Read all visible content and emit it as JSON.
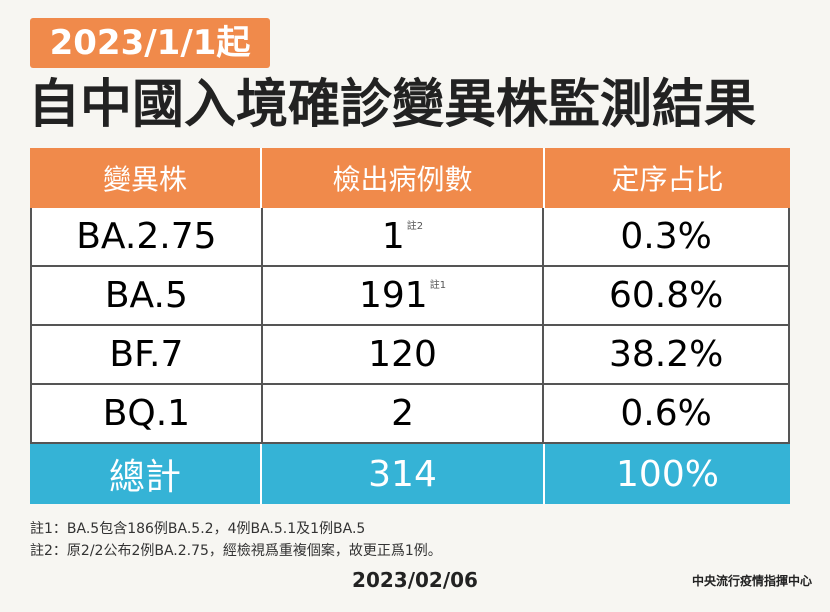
{
  "header": {
    "badge": "2023/1/1起",
    "title": "自中國入境確診變異株監測結果"
  },
  "table": {
    "columns": [
      "變異株",
      "檢出病例數",
      "定序占比"
    ],
    "rows": [
      {
        "cells": [
          "BA.2.75",
          "1",
          "0.3%"
        ],
        "note": "註2"
      },
      {
        "cells": [
          "BA.5",
          "191",
          "60.8%"
        ],
        "note": "註1"
      },
      {
        "cells": [
          "BF.7",
          "120",
          "38.2%"
        ]
      },
      {
        "cells": [
          "BQ.1",
          "2",
          "0.6%"
        ]
      }
    ],
    "total": [
      "總計",
      "314",
      "100%"
    ]
  },
  "notes": [
    "註1：BA.5包含186例BA.5.2，4例BA.5.1及1例BA.5",
    "註2：原2/2公布2例BA.2.75，經檢視爲重複個案，故更正爲1例。"
  ],
  "footer": {
    "date": "2023/02/06",
    "source": "中央流行疫情指揮中心"
  }
}
